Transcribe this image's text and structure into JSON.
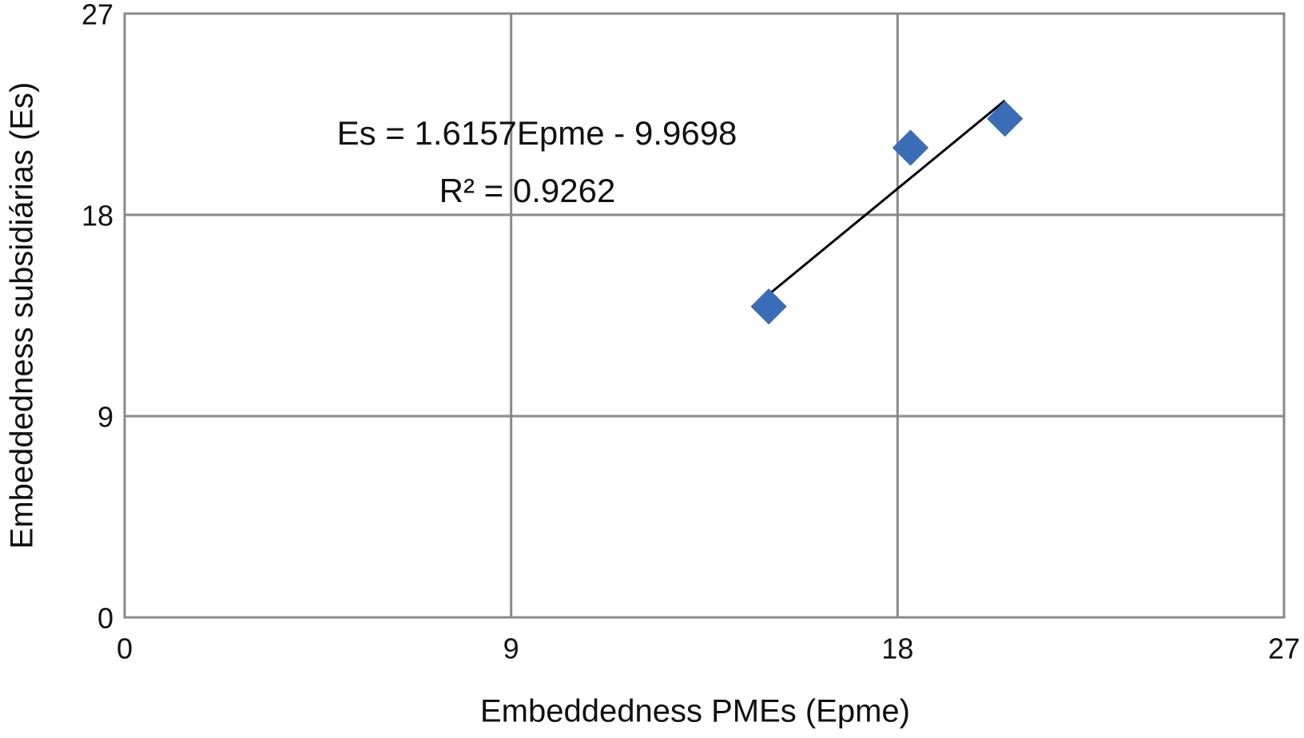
{
  "chart_data": {
    "type": "scatter",
    "x_label": "Embeddedness PMEs (Epme)",
    "y_label": "Embeddedness subsidiárias (Es)",
    "x": [
      15,
      18.3,
      20.5
    ],
    "values": [
      13.9,
      21,
      22.3
    ],
    "color": "#3a6db5",
    "trendline": true,
    "annotations": [
      "Es = 1.6157Epme - 9.9698",
      "R² = 0.9262"
    ],
    "xlim": [
      0,
      27
    ],
    "xticks": [
      0,
      9,
      18,
      27
    ],
    "ylim": [
      0,
      27
    ],
    "yticks": [
      0,
      9,
      18,
      27
    ],
    "grid": true
  }
}
